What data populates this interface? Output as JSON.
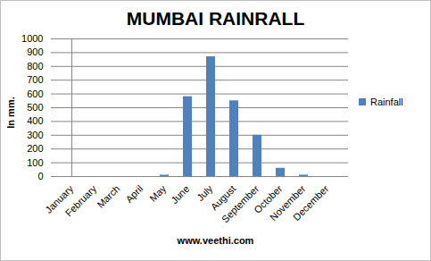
{
  "chart_data": {
    "type": "bar",
    "title": "MUMBAI RAINRALL",
    "y_label": "In mm.",
    "caption": "www.veethi.com",
    "categories": [
      "January",
      "February",
      "March",
      "April",
      "May",
      "June",
      "July",
      "August",
      "September",
      "October",
      "November",
      "December"
    ],
    "series": [
      {
        "name": "Rainfall",
        "color": "#4f81bd",
        "values": [
          0,
          0,
          0,
          0,
          10,
          580,
          870,
          550,
          300,
          60,
          10,
          0
        ]
      }
    ],
    "ylim": [
      0,
      1000
    ],
    "yticks": [
      0,
      100,
      200,
      300,
      400,
      500,
      600,
      700,
      800,
      900,
      1000
    ],
    "grid": true,
    "legend": "right"
  }
}
